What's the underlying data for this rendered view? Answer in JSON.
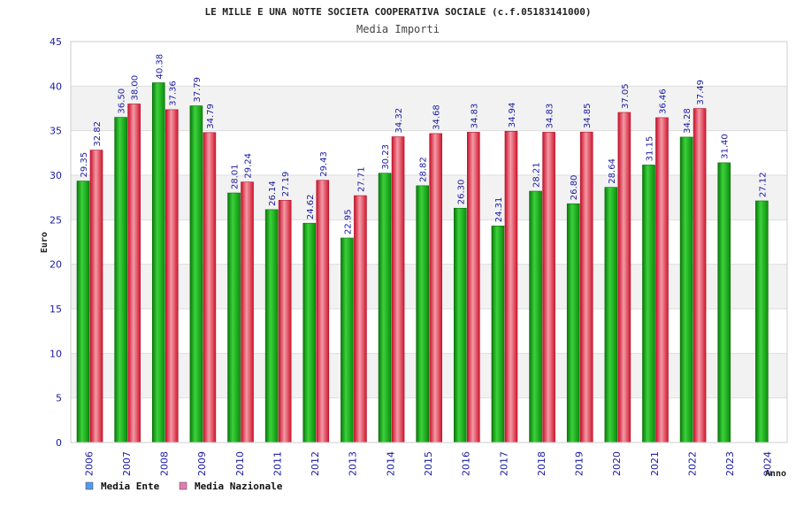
{
  "chart_data": {
    "type": "bar",
    "title": "LE MILLE E UNA NOTTE SOCIETA COOPERATIVA SOCIALE (c.f.05183141000)",
    "subtitle": "Media Importi",
    "xlabel": "Anno",
    "ylabel": "Euro",
    "ylim": [
      0,
      45
    ],
    "yticks": [
      0,
      5,
      10,
      15,
      20,
      25,
      30,
      35,
      40,
      45
    ],
    "grid": true,
    "legend_position": "bottom-left",
    "categories": [
      "2006",
      "2007",
      "2008",
      "2009",
      "2010",
      "2011",
      "2012",
      "2013",
      "2014",
      "2015",
      "2016",
      "2017",
      "2018",
      "2019",
      "2020",
      "2021",
      "2022",
      "2023",
      "2024"
    ],
    "series": [
      {
        "name": "Media Ente",
        "color": "#1fae1f",
        "legend_color": "#5599ee",
        "values": [
          29.35,
          36.5,
          40.38,
          37.79,
          28.01,
          26.14,
          24.62,
          22.95,
          30.23,
          28.82,
          26.3,
          24.31,
          28.21,
          26.8,
          28.64,
          31.15,
          34.28,
          31.4,
          27.12
        ],
        "labels": [
          "29.35",
          "36.50",
          "40.38",
          "37.79",
          "28.01",
          "26.14",
          "24.62",
          "22.95",
          "30.23",
          "28.82",
          "26.30",
          "24.31",
          "28.21",
          "26.80",
          "28.64",
          "31.15",
          "34.28",
          "31.40",
          "27.12"
        ]
      },
      {
        "name": "Media Nazionale",
        "color": "#e8283c",
        "legend_color": "#e87ab0",
        "values": [
          32.82,
          38.0,
          37.36,
          34.79,
          29.24,
          27.19,
          29.43,
          27.71,
          34.32,
          34.68,
          34.83,
          34.94,
          34.83,
          34.85,
          37.05,
          36.46,
          37.49,
          null,
          null
        ],
        "labels": [
          "32.82",
          "38.00",
          "37.36",
          "34.79",
          "29.24",
          "27.19",
          "29.43",
          "27.71",
          "34.32",
          "34.68",
          "34.83",
          "34.94",
          "34.83",
          "34.85",
          "37.05",
          "36.46",
          "37.49",
          "",
          ""
        ]
      }
    ]
  }
}
